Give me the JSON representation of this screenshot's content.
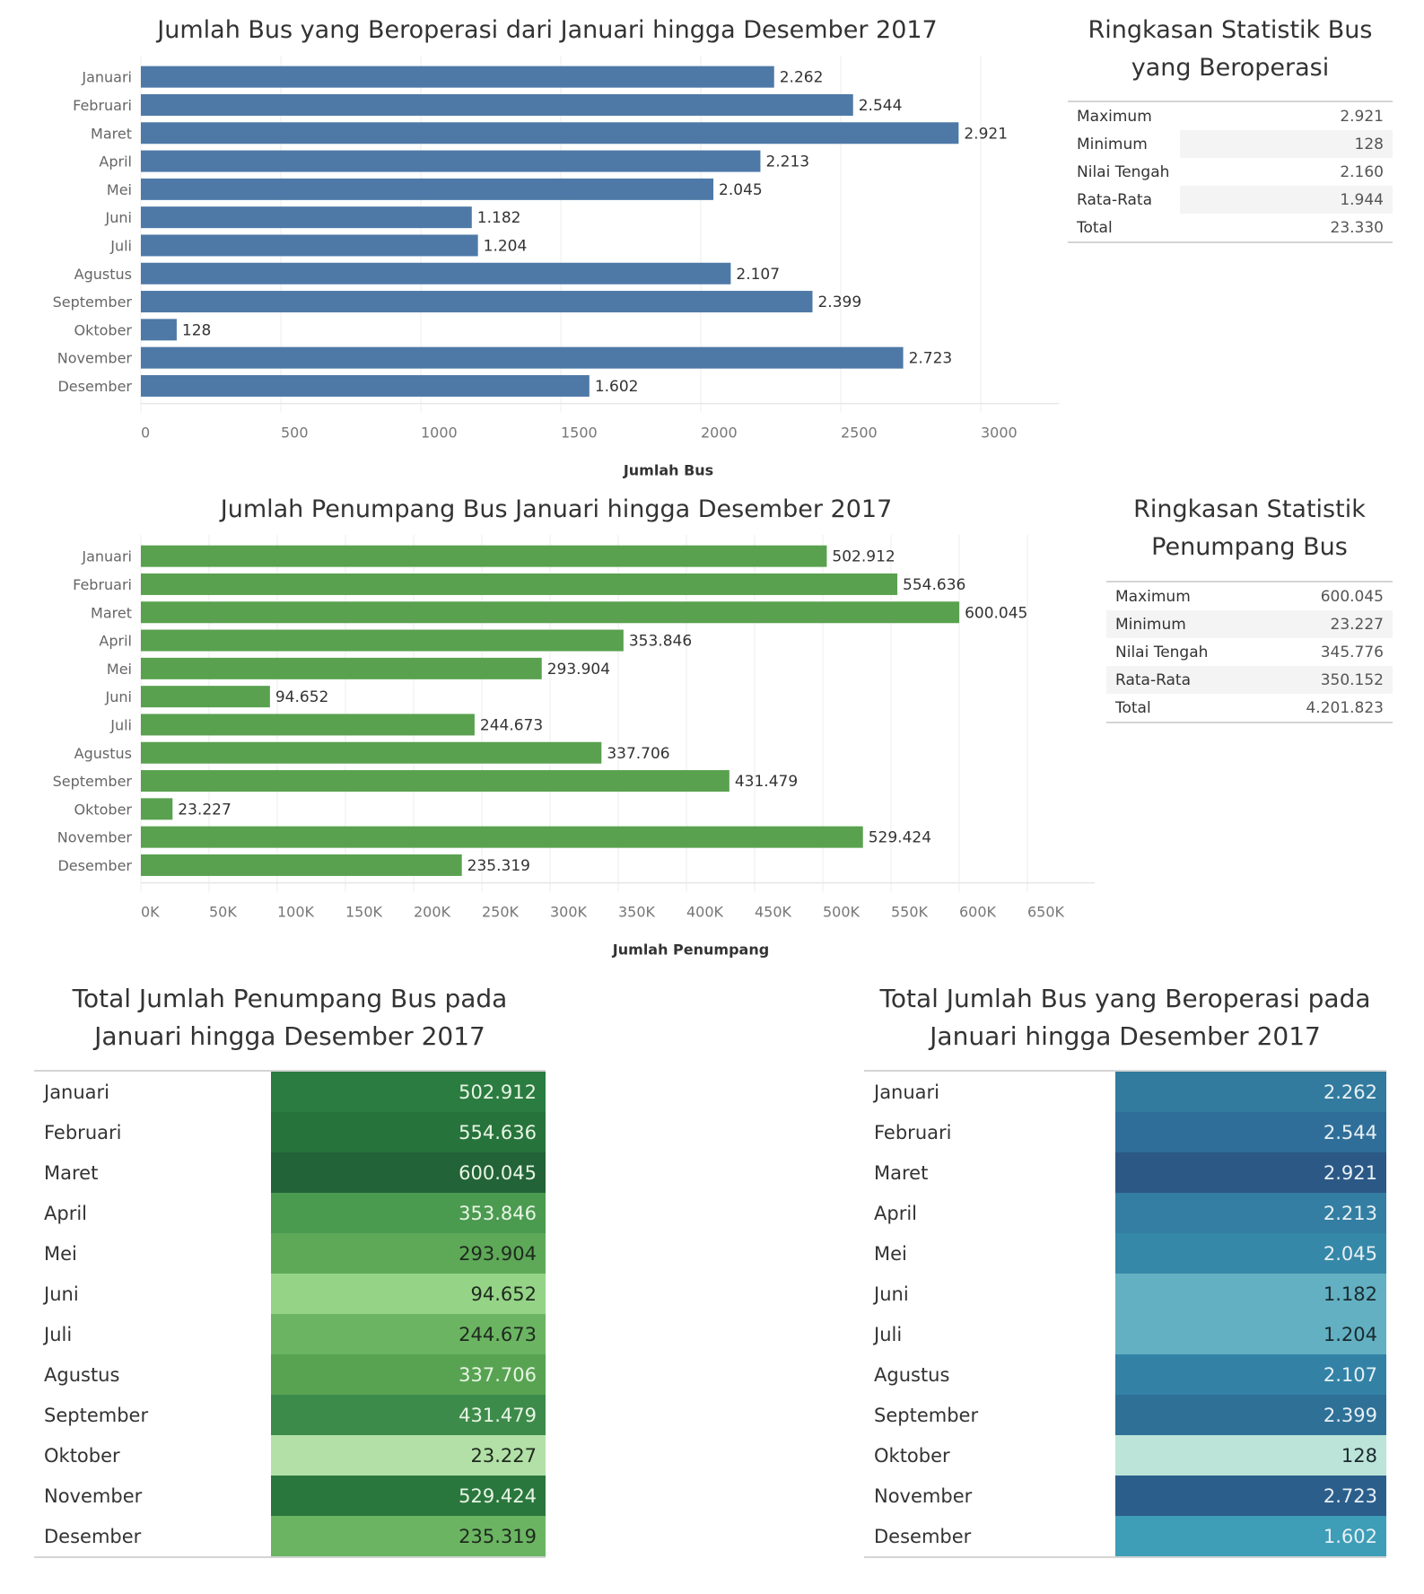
{
  "months": [
    "Januari",
    "Februari",
    "Maret",
    "April",
    "Mei",
    "Juni",
    "Juli",
    "Agustus",
    "September",
    "Oktober",
    "November",
    "Desember"
  ],
  "chart_data": [
    {
      "id": "bus-chart",
      "type": "bar",
      "orientation": "horizontal",
      "title": "Jumlah Bus yang Beroperasi dari Januari hingga Desember 2017",
      "xlabel": "Jumlah Bus",
      "ylabel": "",
      "categories": [
        "Januari",
        "Februari",
        "Maret",
        "April",
        "Mei",
        "Juni",
        "Juli",
        "Agustus",
        "September",
        "Oktober",
        "November",
        "Desember"
      ],
      "values": [
        2262,
        2544,
        2921,
        2213,
        2045,
        1182,
        1204,
        2107,
        2399,
        128,
        2723,
        1602
      ],
      "value_labels": [
        "2.262",
        "2.544",
        "2.921",
        "2.213",
        "2.045",
        "1.182",
        "1.204",
        "2.107",
        "2.399",
        "128",
        "2.723",
        "1.602"
      ],
      "xlim": [
        0,
        3280
      ],
      "ticks": [
        0,
        500,
        1000,
        1500,
        2000,
        2500,
        3000
      ],
      "tick_labels": [
        "0",
        "500",
        "1000",
        "1500",
        "2000",
        "2500",
        "3000"
      ],
      "grid": true,
      "color": "#4e79a7"
    },
    {
      "id": "passenger-chart",
      "type": "bar",
      "orientation": "horizontal",
      "title": "Jumlah Penumpang Bus Januari hingga Desember 2017",
      "xlabel": "Jumlah Penumpang",
      "ylabel": "",
      "categories": [
        "Januari",
        "Februari",
        "Maret",
        "April",
        "Mei",
        "Juni",
        "Juli",
        "Agustus",
        "September",
        "Oktober",
        "November",
        "Desember"
      ],
      "values": [
        502912,
        554636,
        600045,
        353846,
        293904,
        94652,
        244673,
        337706,
        431479,
        23227,
        529424,
        235319
      ],
      "value_labels": [
        "502.912",
        "554.636",
        "600.045",
        "353.846",
        "293.904",
        "94.652",
        "244.673",
        "337.706",
        "431.479",
        "23.227",
        "529.424",
        "235.319"
      ],
      "xlim": [
        0,
        690000
      ],
      "ticks": [
        0,
        50000,
        100000,
        150000,
        200000,
        250000,
        300000,
        350000,
        400000,
        450000,
        500000,
        550000,
        600000,
        650000
      ],
      "tick_labels": [
        "0K",
        "50K",
        "100K",
        "150K",
        "200K",
        "250K",
        "300K",
        "350K",
        "400K",
        "450K",
        "500K",
        "550K",
        "600K",
        "650K"
      ],
      "grid": true,
      "color": "#59a14f"
    },
    {
      "id": "passenger-heatmap",
      "type": "heatmap",
      "title": "Total Jumlah Penumpang Bus pada Januari hingga Desember 2017",
      "categories": [
        "Januari",
        "Februari",
        "Maret",
        "April",
        "Mei",
        "Juni",
        "Juli",
        "Agustus",
        "September",
        "Oktober",
        "November",
        "Desember"
      ],
      "values": [
        502912,
        554636,
        600045,
        353846,
        293904,
        94652,
        244673,
        337706,
        431479,
        23227,
        529424,
        235319
      ],
      "value_labels": [
        "502.912",
        "554.636",
        "600.045",
        "353.846",
        "293.904",
        "94.652",
        "244.673",
        "337.706",
        "431.479",
        "23.227",
        "529.424",
        "235.319"
      ],
      "colors": [
        "#2b7c41",
        "#27733c",
        "#226338",
        "#4a9a50",
        "#5ea958",
        "#95d486",
        "#6bb562",
        "#57a352",
        "#3d8b4b",
        "#b2e0a6",
        "#2a773e",
        "#6bb562"
      ],
      "text_colors": [
        "#e8f5e4",
        "#e8f5e4",
        "#e8f5e4",
        "#e8f5e4",
        "#1e2a1e",
        "#1e2a1e",
        "#1e2a1e",
        "#e8f5e4",
        "#e8f5e4",
        "#1e2a1e",
        "#e8f5e4",
        "#1e2a1e"
      ]
    },
    {
      "id": "bus-heatmap",
      "type": "heatmap",
      "title": "Total Jumlah Bus yang Beroperasi pada Januari hingga Desember 2017",
      "categories": [
        "Januari",
        "Februari",
        "Maret",
        "April",
        "Mei",
        "Juni",
        "Juli",
        "Agustus",
        "September",
        "Oktober",
        "November",
        "Desember"
      ],
      "values": [
        2262,
        2544,
        2921,
        2213,
        2045,
        1182,
        1204,
        2107,
        2399,
        128,
        2723,
        1602
      ],
      "value_labels": [
        "2.262",
        "2.544",
        "2.921",
        "2.213",
        "2.045",
        "1.182",
        "1.204",
        "2.107",
        "2.399",
        "128",
        "2.723",
        "1.602"
      ],
      "colors": [
        "#327a9e",
        "#2f6e98",
        "#2c5886",
        "#337ea2",
        "#3688a8",
        "#62b0c1",
        "#62b0c1",
        "#3382a6",
        "#2f7097",
        "#bce4d8",
        "#2c5e8b",
        "#3e9db7"
      ],
      "text_colors": [
        "#e6f0f5",
        "#e6f0f5",
        "#e6f0f5",
        "#e6f0f5",
        "#e6f0f5",
        "#1a2a30",
        "#1a2a30",
        "#e6f0f5",
        "#e6f0f5",
        "#1a2a30",
        "#e6f0f5",
        "#e6f0f5"
      ]
    }
  ],
  "bus_stats": {
    "title_line1": "Ringkasan Statistik Bus",
    "title_line2": "yang Beroperasi",
    "rows": [
      {
        "label": "Maximum",
        "value": "2.921"
      },
      {
        "label": "Minimum",
        "value": "128"
      },
      {
        "label": "Nilai Tengah",
        "value": "2.160"
      },
      {
        "label": "Rata-Rata",
        "value": "1.944"
      },
      {
        "label": "Total",
        "value": "23.330"
      }
    ]
  },
  "passenger_stats": {
    "title_line1": "Ringkasan Statistik",
    "title_line2": "Penumpang Bus",
    "rows": [
      {
        "label": "Maximum",
        "value": "600.045"
      },
      {
        "label": "Minimum",
        "value": "23.227"
      },
      {
        "label": "Nilai Tengah",
        "value": "345.776"
      },
      {
        "label": "Rata-Rata",
        "value": "350.152"
      },
      {
        "label": "Total",
        "value": "4.201.823"
      }
    ]
  },
  "heatmap_titles": {
    "passenger_line1": "Total Jumlah Penumpang Bus pada",
    "passenger_line2": "Januari hingga Desember 2017",
    "bus_line1": "Total Jumlah Bus yang Beroperasi pada",
    "bus_line2": "Januari hingga Desember 2017"
  }
}
